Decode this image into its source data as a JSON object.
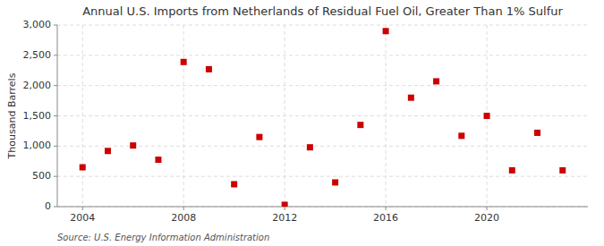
{
  "chart_data": {
    "type": "scatter",
    "title": "Annual U.S. Imports from Netherlands of Residual Fuel Oil, Greater Than 1% Sulfur",
    "y_label": "Thousand Barrels",
    "annotations": [
      "Source: U.S. Energy Information Administration"
    ],
    "x": [
      2004,
      2005,
      2006,
      2007,
      2008,
      2009,
      2010,
      2011,
      2012,
      2013,
      2014,
      2015,
      2016,
      2017,
      2018,
      2019,
      2020,
      2021,
      2022,
      2023
    ],
    "values": [
      650,
      920,
      1010,
      775,
      2390,
      2270,
      370,
      1150,
      30,
      980,
      400,
      1350,
      2900,
      1800,
      2070,
      1170,
      1500,
      600,
      1220,
      600
    ],
    "color": "#cc0000",
    "marker": "square",
    "xlim": [
      2003.0,
      2024.0
    ],
    "xticks": [
      2004,
      2008,
      2012,
      2016,
      2020
    ],
    "ylim": [
      0,
      3000
    ],
    "yticks": [
      0,
      500,
      {
        "value": 1000,
        "label": "1,000"
      },
      {
        "value": 1500,
        "label": "1,500"
      },
      {
        "value": 2000,
        "label": "2,000"
      },
      {
        "value": 2500,
        "label": "2,500"
      },
      {
        "value": 3000,
        "label": "3,000"
      }
    ],
    "grid": true
  }
}
